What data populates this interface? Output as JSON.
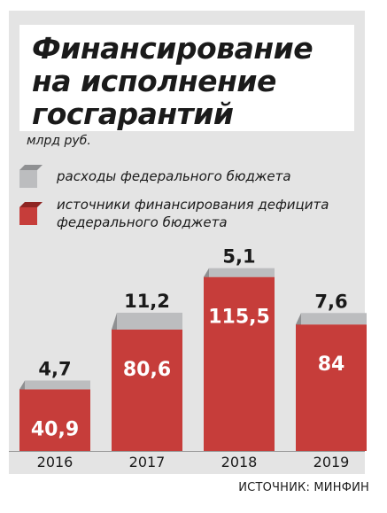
{
  "title_lines": [
    "Финансирование",
    "на исполнение",
    "госгарантий"
  ],
  "unit": "млрд руб.",
  "legend": [
    {
      "label_lines": [
        "расходы федерального бюджета"
      ],
      "color": "#bcbdbf"
    },
    {
      "label_lines": [
        "источники финансирования дефицита",
        "федерального бюджета"
      ],
      "color": "#c63d3a"
    }
  ],
  "source": "ИСТОЧНИК: МИНФИН",
  "colors": {
    "background": "#e4e4e4",
    "red": "#c63d3a",
    "red_dark": "#8e2522",
    "gray": "#bcbdbf",
    "gray_dark": "#8f9092"
  },
  "chart_data": {
    "type": "bar",
    "stacked": true,
    "categories": [
      "2016",
      "2017",
      "2018",
      "2019"
    ],
    "series": [
      {
        "name": "источники финансирования дефицита федерального бюджета",
        "values": [
          40.9,
          80.6,
          115.5,
          84
        ]
      },
      {
        "name": "расходы федерального бюджета",
        "values": [
          4.7,
          11.2,
          5.1,
          7.6
        ]
      }
    ],
    "value_labels_bottom": [
      "40,9",
      "80,6",
      "115,5",
      "84"
    ],
    "value_labels_top": [
      "4,7",
      "11,2",
      "5,1",
      "7,6"
    ],
    "ylim": [
      0,
      125
    ],
    "grid": false,
    "legend_position": "top-left"
  }
}
